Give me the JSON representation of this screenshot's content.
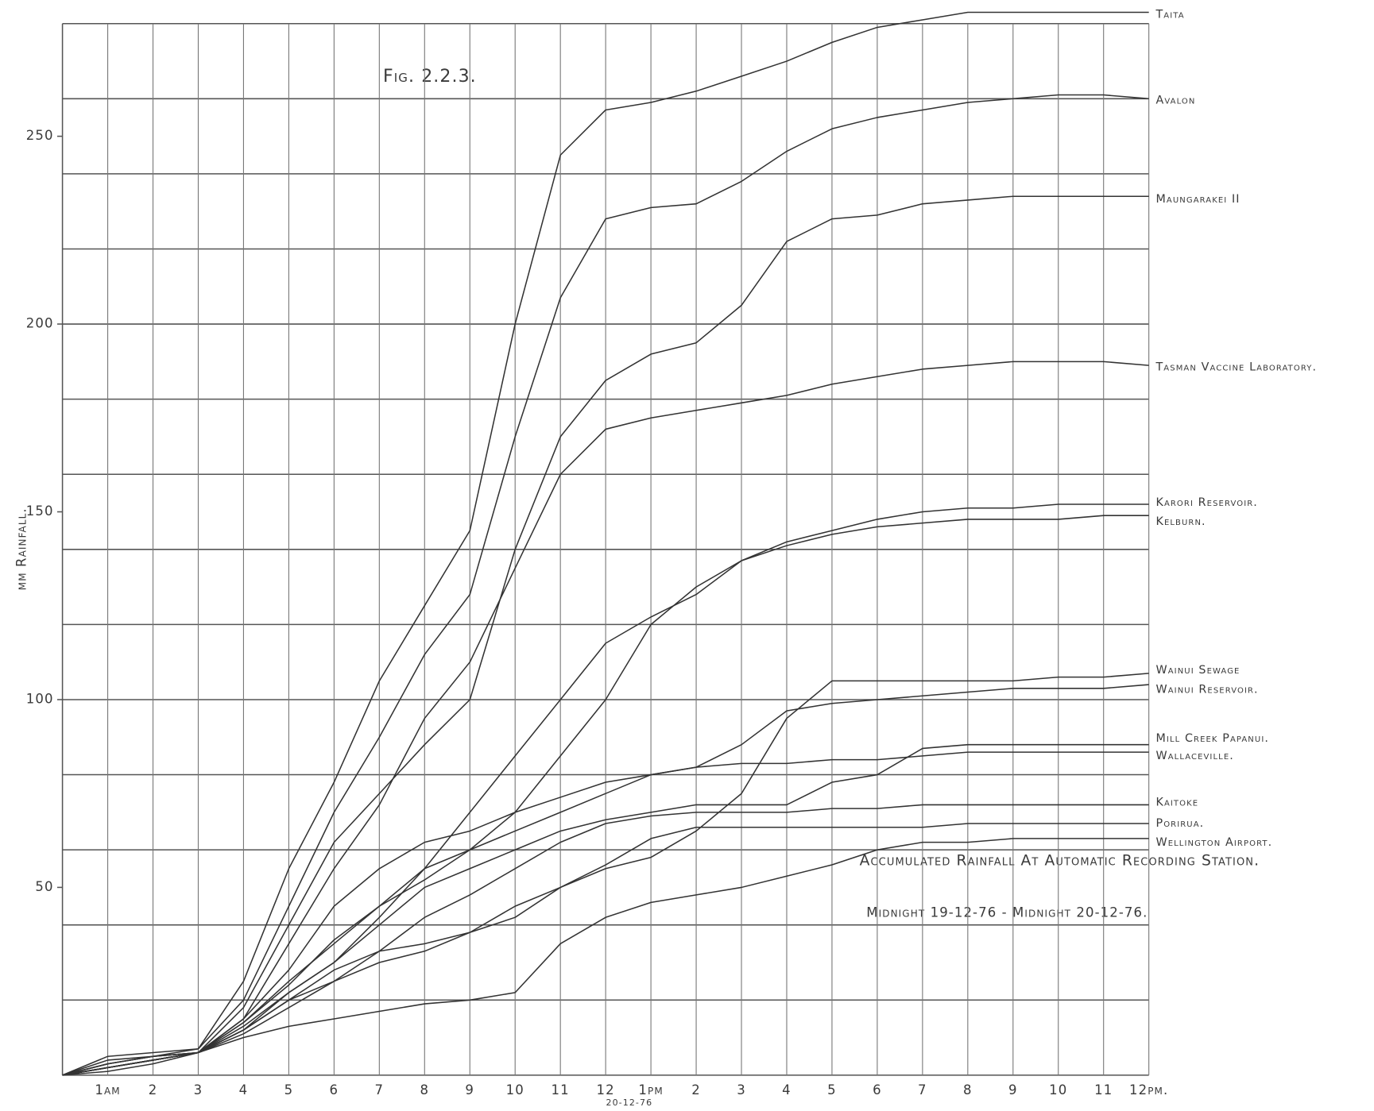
{
  "chart_data": {
    "type": "line",
    "title": "Fig. 2.2.3.",
    "y_label": "mm Rainfall.",
    "annotation": "Accumulated Rainfall At Automatic Recording Station.",
    "period": "Midnight 19-12-76 - Midnight 20-12-76.",
    "date_label": "20-12-76",
    "xlim": [
      0,
      24
    ],
    "ylim": [
      0,
      280
    ],
    "xticks": [
      {
        "value": 1,
        "label": "1am"
      },
      2,
      3,
      4,
      5,
      6,
      7,
      8,
      9,
      10,
      11,
      12,
      {
        "value": 13,
        "label": "1pm"
      },
      {
        "value": 14,
        "label": "2"
      },
      {
        "value": 15,
        "label": "3"
      },
      {
        "value": 16,
        "label": "4"
      },
      {
        "value": 17,
        "label": "5"
      },
      {
        "value": 18,
        "label": "6"
      },
      {
        "value": 19,
        "label": "7"
      },
      {
        "value": 20,
        "label": "8"
      },
      {
        "value": 21,
        "label": "9"
      },
      {
        "value": 22,
        "label": "10"
      },
      {
        "value": 23,
        "label": "11"
      },
      {
        "value": 24,
        "label": "12pm."
      }
    ],
    "yticks": [
      50,
      100,
      150,
      200,
      250
    ],
    "ygrid": [
      20,
      40,
      60,
      80,
      100,
      120,
      140,
      160,
      180,
      200,
      220,
      240,
      260,
      280
    ],
    "grid": true,
    "x": [
      0,
      1,
      2,
      3,
      4,
      5,
      6,
      7,
      8,
      9,
      10,
      11,
      12,
      13,
      14,
      15,
      16,
      17,
      18,
      19,
      20,
      21,
      22,
      23,
      24
    ],
    "series": [
      {
        "name": "Taita",
        "color": "#333333",
        "values": [
          0,
          5,
          6,
          7,
          25,
          55,
          78,
          105,
          125,
          145,
          200,
          245,
          257,
          259,
          262,
          266,
          270,
          275,
          279,
          281,
          283,
          283,
          283,
          283,
          283
        ]
      },
      {
        "name": "Avalon",
        "color": "#333333",
        "values": [
          0,
          4,
          5,
          7,
          20,
          45,
          70,
          90,
          112,
          128,
          170,
          207,
          228,
          231,
          232,
          238,
          246,
          252,
          255,
          257,
          259,
          260,
          261,
          261,
          260
        ]
      },
      {
        "name": "Maungarakei II",
        "color": "#333333",
        "values": [
          0,
          3,
          5,
          6,
          18,
          40,
          62,
          75,
          88,
          100,
          140,
          170,
          185,
          192,
          195,
          205,
          222,
          228,
          229,
          232,
          233,
          234,
          234,
          234,
          234
        ]
      },
      {
        "name": "Tasman Vaccine Laboratory.",
        "color": "#333333",
        "values": [
          0,
          3,
          5,
          6,
          15,
          35,
          55,
          72,
          95,
          110,
          135,
          160,
          172,
          175,
          177,
          179,
          181,
          184,
          186,
          188,
          189,
          190,
          190,
          190,
          189
        ]
      },
      {
        "name": "Karori Reservoir.",
        "color": "#333333",
        "values": [
          0,
          2,
          4,
          6,
          12,
          22,
          30,
          42,
          55,
          70,
          85,
          100,
          115,
          122,
          128,
          137,
          142,
          145,
          148,
          150,
          151,
          151,
          152,
          152,
          152
        ]
      },
      {
        "name": "Kelburn.",
        "color": "#333333",
        "values": [
          0,
          2,
          4,
          6,
          14,
          25,
          35,
          45,
          52,
          60,
          70,
          85,
          100,
          120,
          130,
          137,
          141,
          144,
          146,
          147,
          148,
          148,
          148,
          149,
          149
        ]
      },
      {
        "name": "Wainui Sewage",
        "color": "#333333",
        "values": [
          0,
          2,
          4,
          6,
          12,
          20,
          28,
          33,
          35,
          38,
          45,
          50,
          55,
          58,
          65,
          75,
          95,
          105,
          105,
          105,
          105,
          105,
          106,
          106,
          107
        ]
      },
      {
        "name": "Wainui Reservoir.",
        "color": "#333333",
        "values": [
          0,
          2,
          4,
          6,
          14,
          24,
          36,
          45,
          55,
          60,
          65,
          70,
          75,
          80,
          82,
          88,
          97,
          99,
          100,
          101,
          102,
          103,
          103,
          103,
          104
        ]
      },
      {
        "name": "Mill Creek Papanui.",
        "color": "#333333",
        "values": [
          0,
          2,
          4,
          6,
          13,
          22,
          30,
          40,
          50,
          55,
          60,
          65,
          68,
          70,
          72,
          72,
          72,
          78,
          80,
          87,
          88,
          88,
          88,
          88,
          88
        ]
      },
      {
        "name": "Wallaceville.",
        "color": "#333333",
        "values": [
          0,
          2,
          4,
          6,
          15,
          28,
          45,
          55,
          62,
          65,
          70,
          74,
          78,
          80,
          82,
          83,
          83,
          84,
          84,
          85,
          86,
          86,
          86,
          86,
          86
        ]
      },
      {
        "name": "Kaitoke",
        "color": "#333333",
        "values": [
          0,
          3,
          5,
          6,
          12,
          20,
          25,
          33,
          42,
          48,
          55,
          62,
          67,
          69,
          70,
          70,
          70,
          71,
          71,
          72,
          72,
          72,
          72,
          72,
          72
        ]
      },
      {
        "name": "Porirua.",
        "color": "#333333",
        "values": [
          0,
          2,
          4,
          6,
          11,
          18,
          25,
          30,
          33,
          38,
          42,
          50,
          56,
          63,
          66,
          66,
          66,
          66,
          66,
          66,
          67,
          67,
          67,
          67,
          67
        ]
      },
      {
        "name": "Wellington Airport.",
        "color": "#333333",
        "values": [
          0,
          1,
          3,
          6,
          10,
          13,
          15,
          17,
          19,
          20,
          22,
          35,
          42,
          46,
          48,
          50,
          53,
          56,
          60,
          62,
          62,
          63,
          63,
          63,
          63
        ]
      }
    ]
  }
}
